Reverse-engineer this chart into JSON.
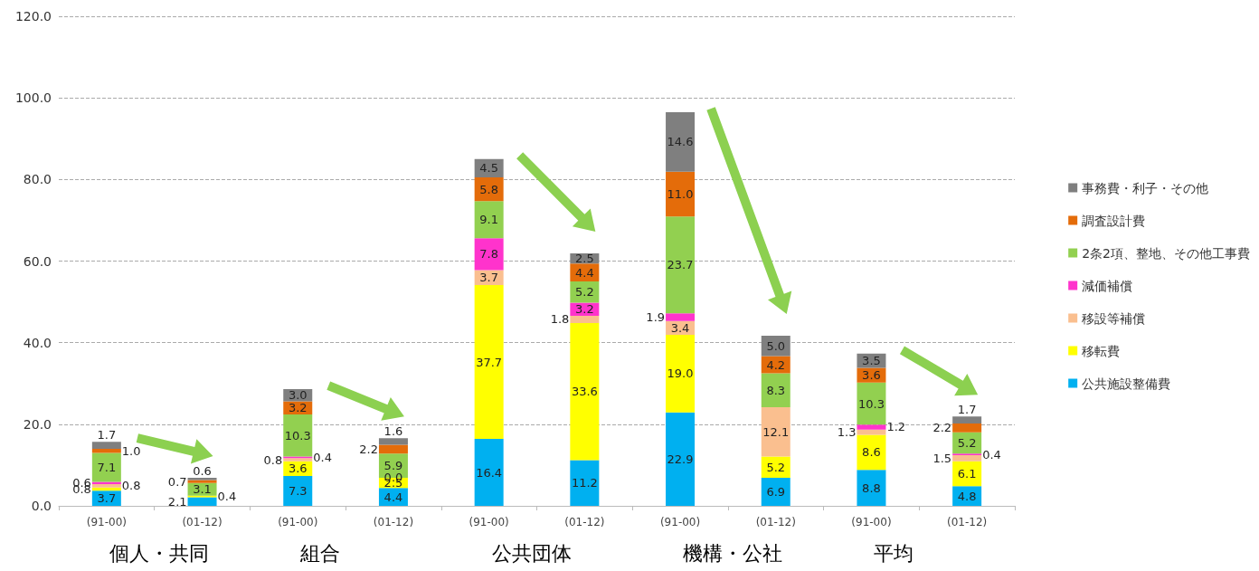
{
  "chart_data": {
    "type": "bar",
    "stacked": true,
    "grid": "y",
    "legend": "right",
    "categories": [
      "(91-00)",
      "(01-12)",
      "(91-00)",
      "(01-12)",
      "(91-00)",
      "(01-12)",
      "(91-00)",
      "(01-12)",
      "(91-00)",
      "(01-12)"
    ],
    "annotations": [
      "個人・共同",
      "組合",
      "公共団体",
      "機構・公社",
      "平均"
    ],
    "ylim": [
      0,
      120
    ],
    "yticks": [
      {
        "value": 0,
        "label": "0.0"
      },
      {
        "value": 20,
        "label": "20.0"
      },
      {
        "value": 40,
        "label": "40.0"
      },
      {
        "value": 60,
        "label": "60.0"
      },
      {
        "value": 80,
        "label": "80.0"
      },
      {
        "value": 100,
        "label": "100.0"
      },
      {
        "value": 120,
        "label": "120.0"
      }
    ],
    "series": [
      {
        "name": "公共施設整備費",
        "color": "#00b0f0",
        "values": [
          3.7,
          2.1,
          7.3,
          4.4,
          16.4,
          11.2,
          22.9,
          6.9,
          8.8,
          4.8
        ],
        "value_labels": [
          "3.7",
          "2.1",
          "7.3",
          "4.4",
          "16.4",
          "11.2",
          "22.9",
          "6.9",
          "8.8",
          "4.8"
        ]
      },
      {
        "name": "移転費",
        "color": "#ffff00",
        "values": [
          0.8,
          0.4,
          3.6,
          2.5,
          37.7,
          33.6,
          19.0,
          5.2,
          8.6,
          6.1
        ],
        "value_labels": [
          "0.8",
          "0.4",
          "3.6",
          "2.5",
          "37.7",
          "33.6",
          "19.0",
          "5.2",
          "8.6",
          "6.1"
        ]
      },
      {
        "name": "移設等補償",
        "color": "#fabf8f",
        "values": [
          0.8,
          null,
          0.8,
          0.0,
          3.7,
          1.8,
          3.4,
          12.1,
          1.3,
          1.5
        ],
        "value_labels": [
          "0.8",
          null,
          "0.8",
          "0.0",
          "3.7",
          "1.8",
          "3.4",
          "12.1",
          "1.3",
          "1.5"
        ]
      },
      {
        "name": "減価補償",
        "color": "#ff33cc",
        "values": [
          0.6,
          null,
          0.4,
          null,
          7.8,
          3.2,
          1.9,
          null,
          1.2,
          0.4
        ],
        "value_labels": [
          "0.6",
          null,
          "0.4",
          null,
          "7.8",
          "3.2",
          "1.9",
          null,
          "1.2",
          "0.4"
        ]
      },
      {
        "name": "2条2項、整地、その他工事費",
        "color": "#92d050",
        "values": [
          7.1,
          3.1,
          10.3,
          5.9,
          9.1,
          5.2,
          23.7,
          8.3,
          10.3,
          5.2
        ],
        "value_labels": [
          "7.1",
          "3.1",
          "10.3",
          "5.9",
          "9.1",
          "5.2",
          "23.7",
          "8.3",
          "10.3",
          "5.2"
        ]
      },
      {
        "name": "調査設計費",
        "color": "#e46c0a",
        "values": [
          1.0,
          0.7,
          3.2,
          2.2,
          5.8,
          4.4,
          11.0,
          4.2,
          3.6,
          2.2
        ],
        "value_labels": [
          "1.0",
          "0.7",
          "3.2",
          "2.2",
          "5.8",
          "4.4",
          "11.0",
          "4.2",
          "3.6",
          "2.2"
        ]
      },
      {
        "name": "事務費・利子・その他",
        "color": "#7f7f7f",
        "values": [
          1.7,
          0.6,
          3.0,
          1.6,
          4.5,
          2.5,
          14.6,
          5.0,
          3.5,
          1.7
        ],
        "value_labels": [
          "1.7",
          "0.6",
          "3.0",
          "1.6",
          "4.5",
          "2.5",
          "14.6",
          "5.0",
          "3.5",
          "1.7"
        ]
      }
    ]
  }
}
